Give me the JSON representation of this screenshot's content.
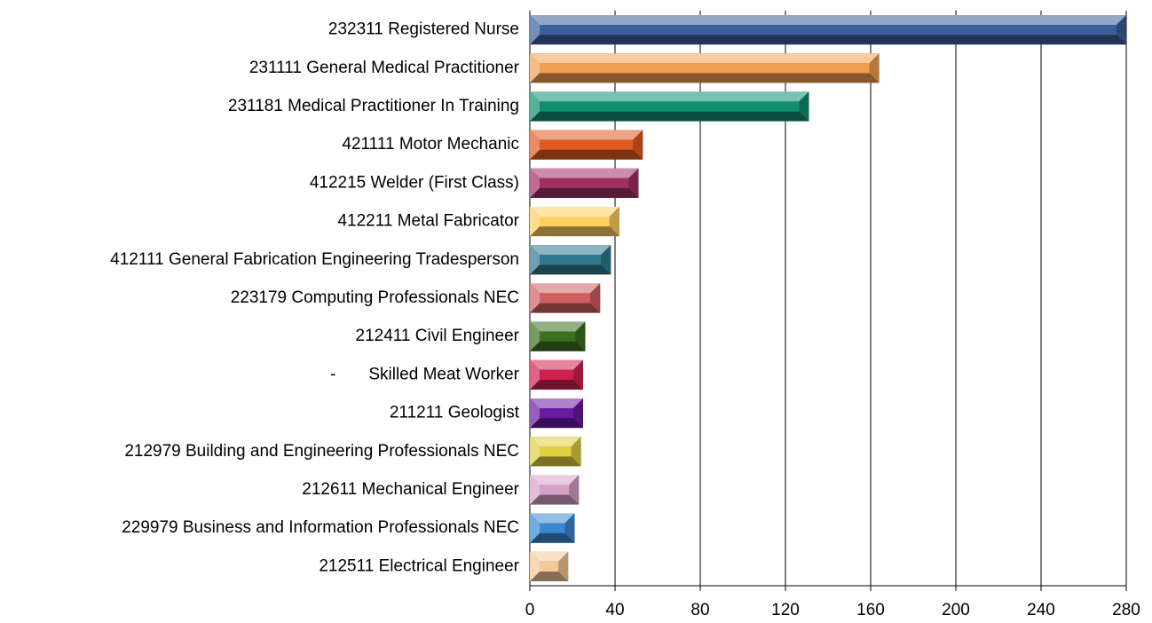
{
  "chart_data": {
    "type": "bar",
    "orientation": "horizontal",
    "categories": [
      "232311 Registered Nurse",
      "231111 General Medical Practitioner",
      "231181 Medical Practitioner In Training",
      "421111 Motor Mechanic",
      "412215 Welder (First Class)",
      "412211 Metal Fabricator",
      "412111 General Fabrication Engineering Tradesperson",
      "223179 Computing Professionals NEC",
      "212411 Civil Engineer",
      "-       Skilled Meat Worker",
      "211211 Geologist",
      "212979 Building and Engineering Professionals NEC",
      "212611 Mechanical Engineer",
      "229979 Business and Information Professionals NEC",
      "212511 Electrical Engineer"
    ],
    "values": [
      280,
      164,
      131,
      53,
      51,
      42,
      38,
      33,
      26,
      25,
      25,
      24,
      23,
      21,
      18
    ],
    "colors": [
      "#3b5f9a",
      "#f0a050",
      "#0e9070",
      "#e05a20",
      "#a03060",
      "#ffd060",
      "#2f7890",
      "#d06060",
      "#3a7020",
      "#d02050",
      "#6a1aa0",
      "#e0d040",
      "#d8a0c8",
      "#3a88d0",
      "#f5c898"
    ],
    "xlim": [
      0,
      280
    ],
    "xticks": [
      0,
      40,
      80,
      120,
      160,
      200,
      240,
      280
    ],
    "grid": true
  }
}
